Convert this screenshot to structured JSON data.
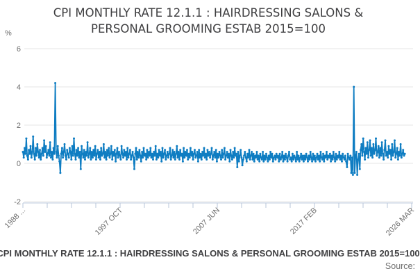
{
  "header": {
    "title_line1": "CPI MONTHLY RATE 12.1.1 : HAIRDRESSING SALONS &",
    "title_line2": "PERSONAL GROOMING ESTAB 2015=100"
  },
  "footer": {
    "legend_label": "CPI MONTHLY RATE 12.1.1 : HAIRDRESSING SALONS & PERSONAL GROOMING ESTAB 2015=100",
    "source_label": "Source:"
  },
  "colors": {
    "line": "#0f7dc2",
    "grid": "#e4e4e4",
    "axis": "#b7c4da",
    "title_text": "#3f3f41",
    "tick_text": "#6e6e6e",
    "legend_text": "#3f3f41",
    "source_text": "#6e6e6e"
  },
  "chart_data": {
    "type": "line",
    "title": "CPI MONTHLY RATE 12.1.1 : HAIRDRESSING SALONS & PERSONAL GROOMING ESTAB 2015=100",
    "xlabel": "",
    "ylabel": "%",
    "ylim": [
      -2,
      6
    ],
    "y_ticks": [
      6,
      4,
      2,
      0,
      -2
    ],
    "x_tick_labels": [
      "1988 ...",
      "1997 OCT",
      "2007 JUN",
      "2017 FEB",
      "2026 MAR"
    ],
    "x_start": "1988 FEB",
    "x_end": "2026 MAR",
    "frequency": "monthly",
    "grid": "horizontal gridlines on",
    "legend_position": "bottom",
    "notable_points": [
      {
        "x": "1991 APR",
        "value": 4.2
      },
      {
        "x": "2020 JUL",
        "value": 4.0
      }
    ],
    "values": [
      0.6,
      0.3,
      0.8,
      0.5,
      1.3,
      0.4,
      0.2,
      0.7,
      0.5,
      0.9,
      0.3,
      0.6,
      1.4,
      0.5,
      0.2,
      0.8,
      0.4,
      1.0,
      0.6,
      0.3,
      0.7,
      0.2,
      0.5,
      0.8,
      0.4,
      1.2,
      0.6,
      0.9,
      0.3,
      0.5,
      0.7,
      0.4,
      1.1,
      0.3,
      0.6,
      0.2,
      0.8,
      0.5,
      4.2,
      0.6,
      0.3,
      0.9,
      0.4,
      0.1,
      -0.5,
      0.5,
      0.8,
      0.3,
      0.6,
      1.0,
      0.4,
      0.2,
      0.7,
      0.5,
      0.3,
      0.8,
      0.6,
      0.2,
      0.9,
      0.4,
      1.3,
      0.5,
      0.2,
      0.7,
      0.4,
      0.8,
      0.3,
      0.6,
      -0.3,
      0.9,
      0.5,
      0.3,
      0.7,
      0.2,
      0.6,
      0.4,
      1.1,
      0.3,
      0.5,
      0.8,
      0.2,
      0.6,
      0.3,
      0.7,
      0.4,
      0.9,
      0.2,
      0.5,
      0.7,
      0.3,
      0.6,
      0.2,
      0.8,
      0.4,
      0.5,
      1.0,
      0.3,
      0.6,
      0.2,
      0.7,
      0.4,
      0.8,
      0.3,
      0.5,
      0.9,
      0.2,
      0.6,
      0.4,
      0.7,
      0.1,
      0.5,
      0.8,
      0.3,
      0.6,
      0.4,
      0.2,
      0.9,
      0.5,
      0.3,
      0.7,
      0.4,
      0.6,
      0.2,
      0.8,
      0.3,
      0.5,
      0.7,
      0.2,
      0.4,
      0.6,
      0.3,
      -0.3,
      0.5,
      0.8,
      0.2,
      0.6,
      0.3,
      0.7,
      0.4,
      0.1,
      0.6,
      0.3,
      0.8,
      0.4,
      0.5,
      0.2,
      0.7,
      0.3,
      0.6,
      0.4,
      0.8,
      0.3,
      0.5,
      0.2,
      0.6,
      0.4,
      0.9,
      0.2,
      0.5,
      0.3,
      0.7,
      0.4,
      0.6,
      0.1,
      0.8,
      0.3,
      0.5,
      0.7,
      0.2,
      0.4,
      0.6,
      0.3,
      0.5,
      0.8,
      0.2,
      0.4,
      0.7,
      0.3,
      0.6,
      0.2,
      0.5,
      0.9,
      0.3,
      0.6,
      0.2,
      0.7,
      0.4,
      0.5,
      0.1,
      0.8,
      0.3,
      0.6,
      0.4,
      0.7,
      0.2,
      0.5,
      0.3,
      0.8,
      0.4,
      0.6,
      0.2,
      0.5,
      0.7,
      0.3,
      0.4,
      0.6,
      0.1,
      0.7,
      0.3,
      0.5,
      0.2,
      0.6,
      0.4,
      0.8,
      0.3,
      0.5,
      0.2,
      0.7,
      0.4,
      0.6,
      0.3,
      0.5,
      0.8,
      0.2,
      0.4,
      0.6,
      0.3,
      0.7,
      0.1,
      0.5,
      0.3,
      0.6,
      0.4,
      0.2,
      0.7,
      0.3,
      0.5,
      0.8,
      0.2,
      0.4,
      0.6,
      0.3,
      0.5,
      0.1,
      0.7,
      0.4,
      0.2,
      0.6,
      0.3,
      0.8,
      0.4,
      0.5,
      -0.2,
      0.6,
      0.1,
      0.4,
      0.7,
      0.3,
      -0.1,
      0.2,
      0.4,
      0.6,
      0.3,
      0.1,
      0.5,
      0.3,
      0.7,
      0.2,
      0.4,
      0.6,
      0.2,
      0.5,
      0.1,
      0.4,
      0.3,
      0.6,
      0.2,
      0.4,
      0.1,
      0.5,
      0.3,
      0.2,
      0.6,
      0.1,
      0.4,
      0.2,
      0.5,
      0.3,
      0.1,
      0.4,
      0.2,
      0.6,
      0.3,
      0.5,
      0.1,
      0.3,
      0.4,
      0.2,
      0.5,
      0.3,
      0.4,
      0.1,
      0.5,
      0.2,
      0.3,
      0.6,
      0.1,
      0.4,
      0.2,
      0.5,
      0.3,
      0.1,
      0.4,
      0.6,
      0.2,
      0.3,
      0.1,
      0.5,
      0.2,
      0.4,
      0.3,
      0.1,
      0.6,
      0.2,
      0.4,
      0.1,
      0.3,
      0.5,
      0.2,
      0.4,
      0.1,
      0.4,
      0.2,
      0.5,
      0.3,
      0.1,
      0.4,
      0.2,
      0.6,
      0.3,
      0.1,
      0.5,
      0.2,
      0.4,
      0.1,
      0.3,
      0.5,
      0.2,
      0.4,
      0.1,
      0.6,
      0.3,
      0.2,
      0.5,
      0.1,
      0.4,
      0.3,
      0.6,
      0.2,
      0.4,
      0.3,
      0.5,
      0.1,
      0.4,
      0.2,
      0.6,
      0.3,
      0.1,
      0.5,
      0.2,
      0.4,
      0.3,
      0.6,
      0.2,
      0.4,
      0.1,
      0.5,
      0.3,
      0.2,
      0.4,
      0.1,
      -0.2,
      0.5,
      0.3,
      0.2,
      0.4,
      -0.5,
      0.3,
      -0.6,
      4.0,
      -0.5,
      0.4,
      0.6,
      -0.6,
      0.2,
      0.5,
      -0.3,
      0.7,
      1.0,
      0.4,
      1.3,
      0.6,
      0.2,
      0.8,
      0.5,
      1.1,
      0.3,
      0.7,
      1.2,
      0.4,
      0.8,
      0.3,
      1.0,
      0.5,
      0.7,
      1.3,
      0.4,
      0.6,
      0.9,
      0.3,
      0.8,
      0.4,
      1.1,
      0.5,
      0.2,
      0.7,
      1.2,
      0.4,
      0.6,
      0.3,
      0.9,
      0.5,
      0.7,
      0.2,
      1.0,
      0.4,
      0.6,
      1.2,
      0.3,
      0.5,
      0.8,
      0.2,
      0.6,
      0.4,
      1.0,
      0.3,
      0.5,
      0.7,
      0.4,
      0.5
    ]
  }
}
